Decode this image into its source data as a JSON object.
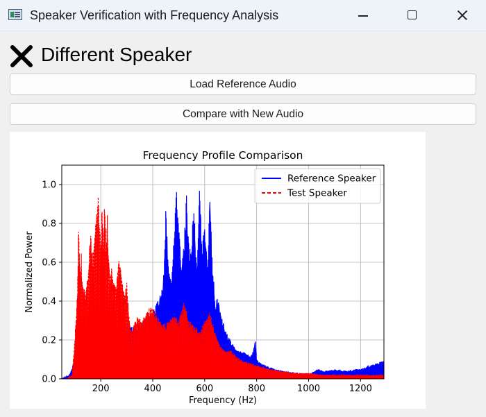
{
  "window": {
    "title": "Speaker Verification with Frequency Analysis",
    "icon": "app-window-icon"
  },
  "result": {
    "icon": "cross-icon",
    "text": "Different Speaker"
  },
  "buttons": {
    "load_label": "Load Reference Audio",
    "compare_label": "Compare with New Audio"
  },
  "chart_data": {
    "type": "area",
    "title": "Frequency Profile Comparison",
    "xlabel": "Frequency (Hz)",
    "ylabel": "Normalized Power",
    "xlim": [
      50,
      1290
    ],
    "ylim": [
      0,
      1.1
    ],
    "xticks": [
      200,
      400,
      600,
      800,
      1000,
      1200
    ],
    "xtick_labels": [
      "200",
      "400",
      "600",
      "800",
      "1000",
      "1200"
    ],
    "yticks": [
      0.0,
      0.2,
      0.4,
      0.6,
      0.8,
      1.0
    ],
    "ytick_labels": [
      "0.0",
      "0.2",
      "0.4",
      "0.6",
      "0.8",
      "1.0"
    ],
    "grid": true,
    "legend_position": "top-right",
    "series": [
      {
        "name": "Reference Speaker",
        "color": "#0000ff",
        "style": "solid",
        "x": [
          50,
          80,
          100,
          120,
          140,
          160,
          180,
          200,
          220,
          240,
          260,
          280,
          300,
          320,
          340,
          360,
          380,
          400,
          420,
          440,
          450,
          460,
          470,
          480,
          490,
          500,
          510,
          520,
          530,
          540,
          550,
          560,
          570,
          580,
          590,
          600,
          610,
          620,
          630,
          640,
          650,
          660,
          670,
          680,
          700,
          720,
          740,
          760,
          780,
          795,
          800,
          820,
          850,
          900,
          950,
          1000,
          1040,
          1060,
          1100,
          1150,
          1180,
          1200,
          1220,
          1240,
          1260,
          1280,
          1290
        ],
        "y": [
          0.0,
          0.02,
          0.1,
          0.2,
          0.25,
          0.27,
          0.28,
          0.3,
          0.28,
          0.27,
          0.26,
          0.25,
          0.26,
          0.27,
          0.28,
          0.3,
          0.33,
          0.35,
          0.4,
          0.48,
          0.88,
          0.6,
          0.5,
          0.75,
          1.0,
          0.85,
          0.55,
          0.7,
          0.98,
          0.65,
          0.75,
          0.9,
          0.55,
          0.98,
          0.7,
          0.85,
          0.6,
          0.92,
          0.6,
          0.4,
          0.42,
          0.35,
          0.3,
          0.25,
          0.2,
          0.15,
          0.14,
          0.13,
          0.12,
          0.2,
          0.1,
          0.08,
          0.06,
          0.04,
          0.03,
          0.025,
          0.05,
          0.04,
          0.05,
          0.04,
          0.05,
          0.05,
          0.06,
          0.07,
          0.08,
          0.09,
          0.09
        ]
      },
      {
        "name": "Test Speaker",
        "color": "#ff0000",
        "style": "dashed",
        "x": [
          50,
          70,
          90,
          100,
          110,
          115,
          120,
          125,
          130,
          140,
          150,
          160,
          170,
          180,
          190,
          195,
          200,
          205,
          210,
          215,
          220,
          225,
          230,
          235,
          240,
          250,
          260,
          270,
          280,
          290,
          300,
          310,
          320,
          340,
          360,
          380,
          400,
          420,
          440,
          460,
          480,
          500,
          520,
          540,
          560,
          580,
          600,
          620,
          640,
          660,
          680,
          700,
          720,
          740,
          760,
          780,
          800,
          850,
          900,
          950,
          1000,
          1050,
          1100,
          1150,
          1200,
          1250,
          1290
        ],
        "y": [
          0.0,
          0.0,
          0.02,
          0.2,
          0.45,
          0.84,
          0.55,
          0.65,
          0.5,
          0.45,
          0.55,
          0.75,
          0.65,
          0.8,
          1.0,
          0.85,
          0.7,
          0.95,
          0.75,
          1.0,
          0.7,
          0.85,
          0.65,
          0.55,
          0.6,
          0.5,
          0.48,
          0.64,
          0.55,
          0.45,
          0.5,
          0.3,
          0.25,
          0.32,
          0.3,
          0.36,
          0.38,
          0.32,
          0.28,
          0.3,
          0.33,
          0.3,
          0.4,
          0.3,
          0.28,
          0.24,
          0.3,
          0.35,
          0.24,
          0.17,
          0.14,
          0.15,
          0.12,
          0.1,
          0.09,
          0.08,
          0.07,
          0.05,
          0.04,
          0.03,
          0.03,
          0.02,
          0.02,
          0.02,
          0.02,
          0.02,
          0.02
        ]
      }
    ]
  }
}
